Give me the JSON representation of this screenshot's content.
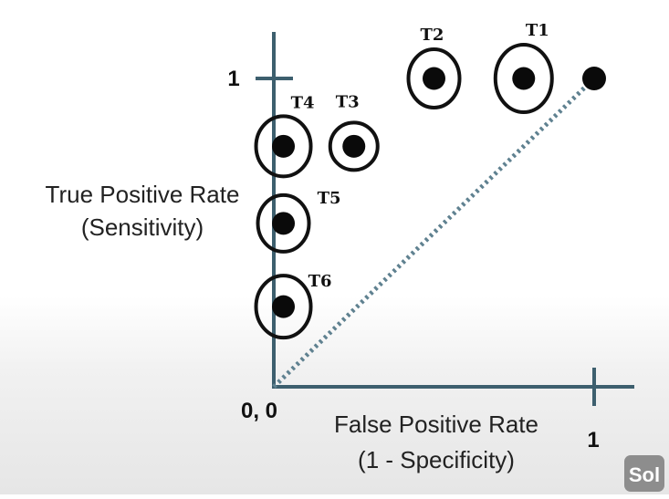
{
  "chart_data": {
    "type": "scatter",
    "title": "",
    "xlabel": [
      "False Positive Rate",
      "(1 - Specificity)"
    ],
    "ylabel": [
      "True Positive Rate",
      "(Sensitivity)"
    ],
    "xlim": [
      0,
      1
    ],
    "ylim": [
      0,
      1
    ],
    "ticks": {
      "origin": "0, 0",
      "x": [
        {
          "value": 1,
          "label": "1"
        }
      ],
      "y": [
        {
          "value": 1,
          "label": "1"
        }
      ]
    },
    "grid": false,
    "points": [
      {
        "label": "T1",
        "x": 0.78,
        "y": 1.0,
        "circled": true
      },
      {
        "label": "T2",
        "x": 0.5,
        "y": 1.0,
        "circled": true
      },
      {
        "label": "T3",
        "x": 0.25,
        "y": 0.78,
        "circled": true
      },
      {
        "label": "T4",
        "x": 0.03,
        "y": 0.78,
        "circled": true
      },
      {
        "label": "T5",
        "x": 0.03,
        "y": 0.53,
        "circled": true
      },
      {
        "label": "T6",
        "x": 0.03,
        "y": 0.26,
        "circled": true
      },
      {
        "label": "",
        "x": 1.0,
        "y": 1.0,
        "circled": false
      }
    ],
    "reference_line": {
      "from": [
        0,
        0
      ],
      "to": [
        1,
        1
      ],
      "style": "dotted"
    },
    "colors": {
      "axis": "#3d5f6e",
      "point": "#0a0a0a",
      "reference_line": "#5f8190"
    }
  },
  "watermark": {
    "text": "Sol"
  }
}
